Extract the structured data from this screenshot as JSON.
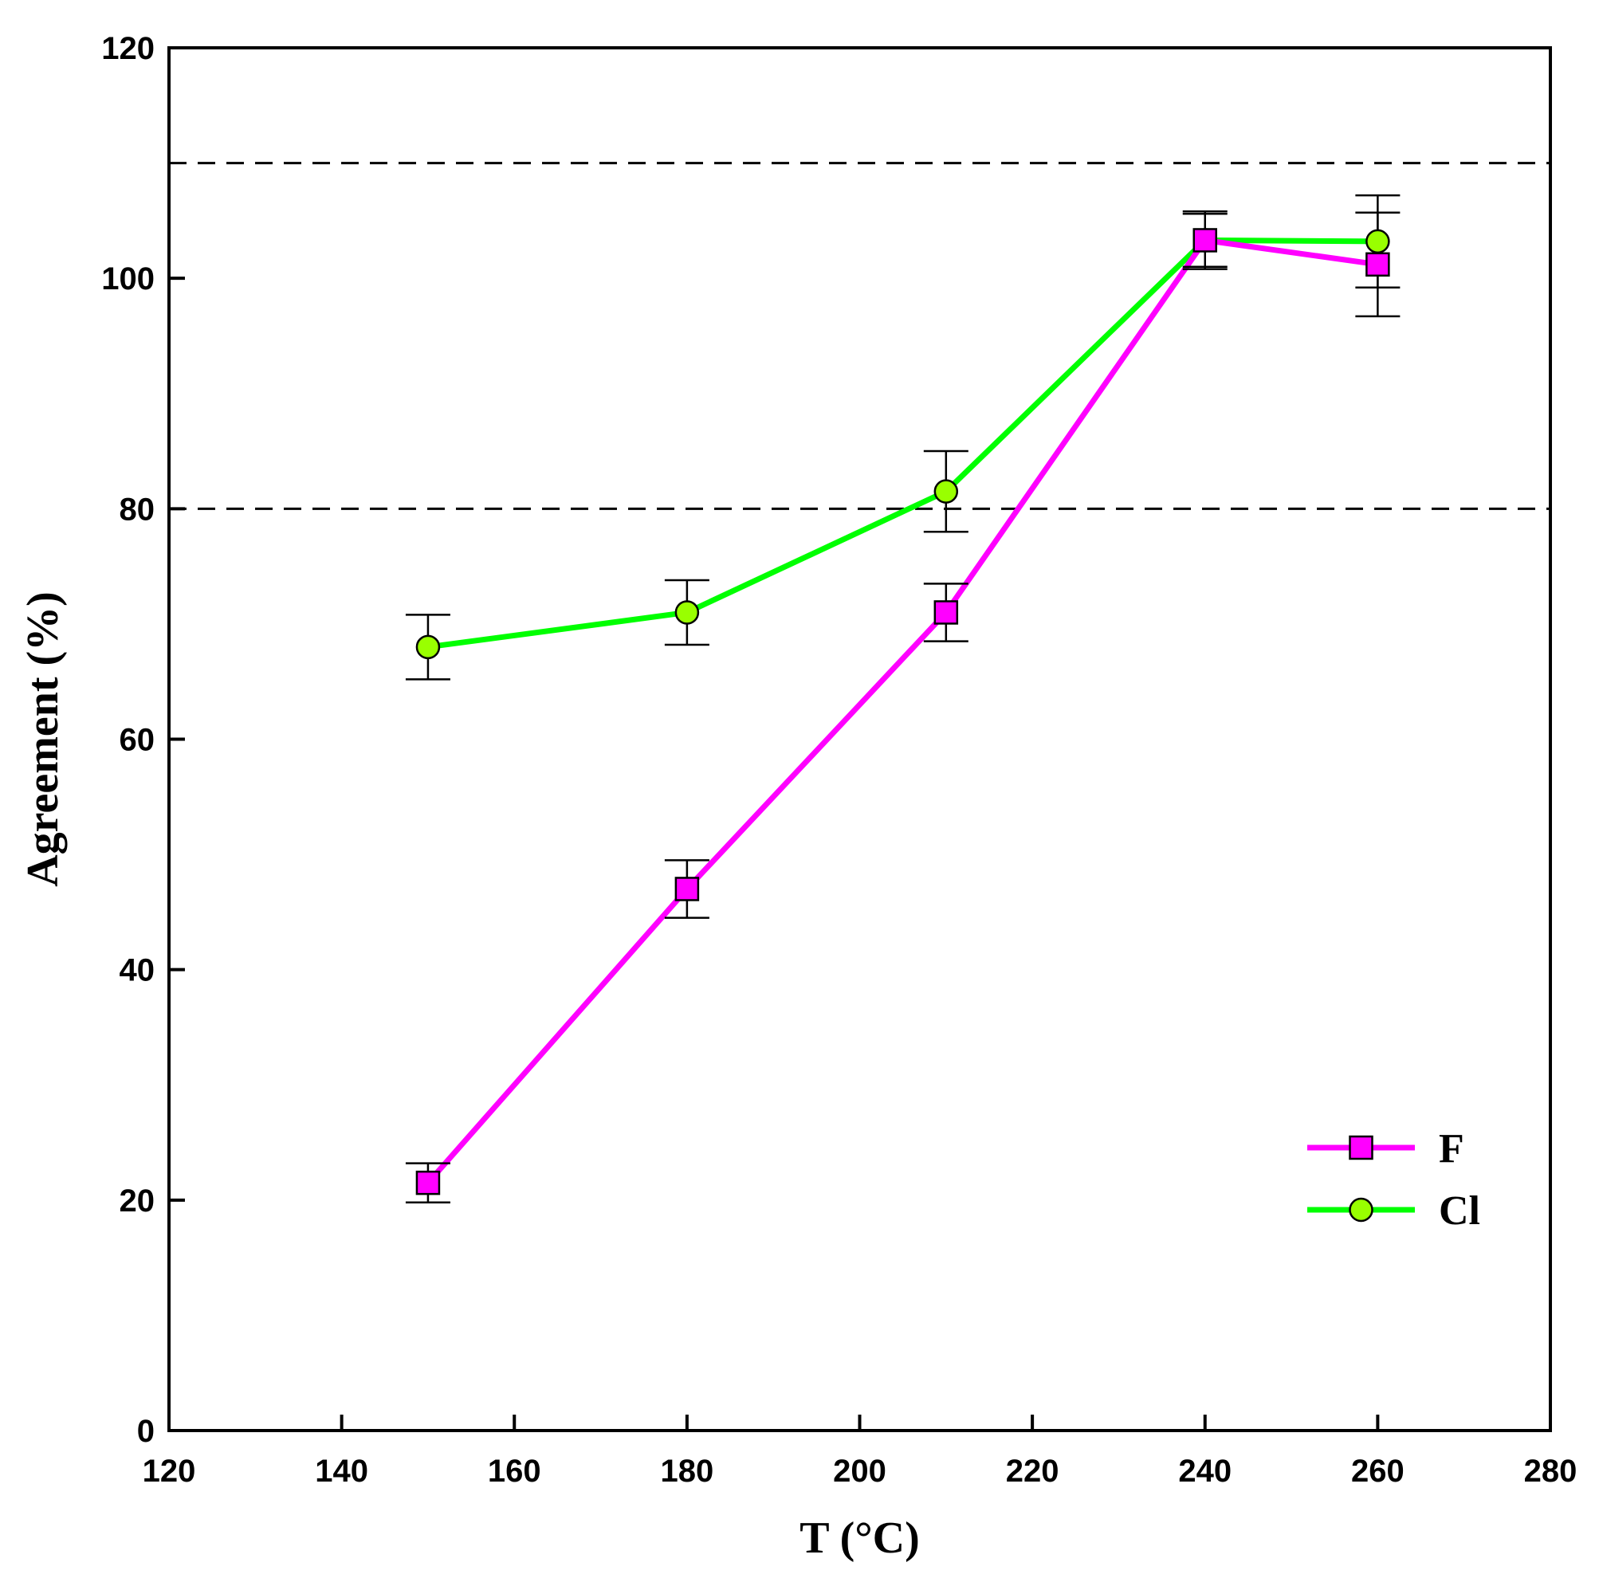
{
  "chart_data": {
    "type": "line",
    "xlabel": "T (°C)",
    "ylabel": "Agreement (%)",
    "xlim": [
      120,
      280
    ],
    "ylim": [
      0,
      120
    ],
    "x_ticks": [
      "120",
      "140",
      "160",
      "180",
      "200",
      "220",
      "240",
      "260",
      "280"
    ],
    "y_ticks": [
      "0",
      "20",
      "40",
      "60",
      "80",
      "100",
      "120"
    ],
    "grid": false,
    "legend_position": "bottom-right",
    "reference_lines": [
      {
        "y": 110,
        "style": "dashed"
      },
      {
        "y": 80,
        "style": "dashed"
      }
    ],
    "series": [
      {
        "name": "F",
        "marker": "square",
        "color": "#ff00ff",
        "marker_color": "#ff00ff",
        "x": [
          150,
          180,
          210,
          240,
          260
        ],
        "y": [
          21.5,
          47,
          71,
          103.3,
          101.2
        ],
        "err": [
          1.7,
          2.5,
          2.5,
          2.5,
          4.5
        ]
      },
      {
        "name": "Cl",
        "marker": "circle",
        "color": "#00ff00",
        "marker_color": "#99ff00",
        "x": [
          150,
          180,
          210,
          240,
          260
        ],
        "y": [
          68,
          71,
          81.5,
          103.3,
          103.2
        ],
        "err": [
          2.8,
          2.8,
          3.5,
          2.3,
          4
        ]
      }
    ]
  }
}
